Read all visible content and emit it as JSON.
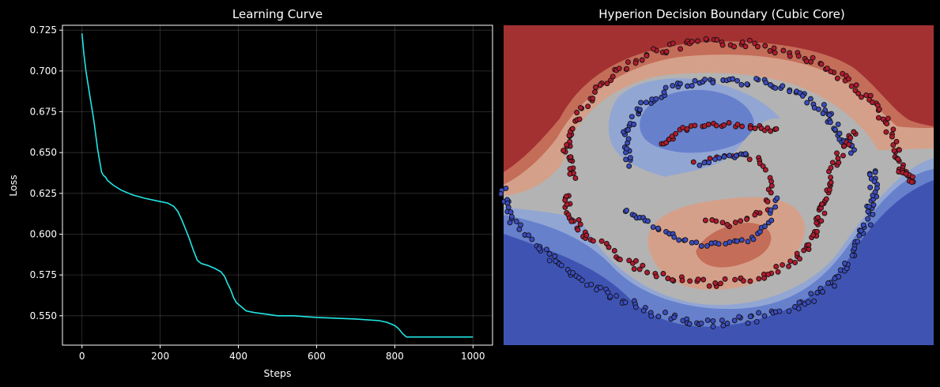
{
  "chart_data": [
    {
      "type": "line",
      "title": "Learning Curve",
      "xlabel": "Steps",
      "ylabel": "Loss",
      "xlim": [
        -50,
        1050
      ],
      "ylim": [
        0.532,
        0.728
      ],
      "xticks": [
        0,
        200,
        400,
        600,
        800,
        1000
      ],
      "yticks": [
        0.55,
        0.575,
        0.6,
        0.625,
        0.65,
        0.675,
        0.7,
        0.725
      ],
      "ytick_labels": [
        "0.550",
        "0.575",
        "0.600",
        "0.625",
        "0.650",
        "0.675",
        "0.700",
        "0.725"
      ],
      "grid": true,
      "line_color": "#22e5e5",
      "series": [
        {
          "x": [
            0,
            5,
            10,
            20,
            30,
            40,
            45,
            50,
            55,
            60,
            65,
            70,
            80,
            100,
            130,
            160,
            200,
            220,
            235,
            245,
            255,
            265,
            275,
            285,
            295,
            305,
            320,
            340,
            355,
            365,
            372,
            380,
            388,
            395,
            400,
            410,
            420,
            440,
            470,
            500,
            540,
            600,
            700,
            760,
            780,
            790,
            800,
            810,
            820,
            830,
            900,
            1000
          ],
          "y": [
            0.723,
            0.71,
            0.7,
            0.685,
            0.67,
            0.652,
            0.645,
            0.638,
            0.636,
            0.635,
            0.633,
            0.632,
            0.63,
            0.627,
            0.624,
            0.622,
            0.62,
            0.619,
            0.617,
            0.614,
            0.609,
            0.603,
            0.597,
            0.59,
            0.584,
            0.582,
            0.581,
            0.579,
            0.577,
            0.574,
            0.57,
            0.566,
            0.561,
            0.558,
            0.557,
            0.555,
            0.553,
            0.552,
            0.551,
            0.55,
            0.55,
            0.549,
            0.548,
            0.547,
            0.546,
            0.545,
            0.544,
            0.542,
            0.539,
            0.537,
            0.537,
            0.537
          ]
        }
      ]
    },
    {
      "type": "scatter",
      "title": "Hyperion Decision Boundary (Cubic Core)",
      "xlabel": "",
      "ylabel": "",
      "grid": false,
      "background": "filled-contour",
      "colormap": "coolwarm",
      "series": [
        {
          "class": 1,
          "color": "#b01a2e"
        },
        {
          "class": 0,
          "color": "#3b4cc0"
        }
      ]
    }
  ]
}
